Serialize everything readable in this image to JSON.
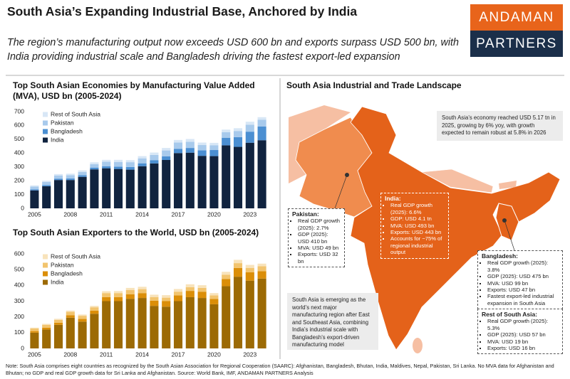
{
  "header": {
    "title": "South Asia’s Expanding Industrial Base, Anchored by India",
    "subtitle": "The region’s manufacturing output now exceeds USD 600 bn and exports surpass USD 500 bn, with India providing industrial scale and Bangladesh driving the fastest export-led expansion",
    "logo": [
      "ANDAMAN",
      "PARTNERS"
    ]
  },
  "chart_data": [
    {
      "type": "stacked_bar",
      "title": "Top South Asian Economies by Manufacturing Value Added (MVA), USD bn (2005-2024)",
      "categories": [
        "2005",
        null,
        null,
        "2008",
        null,
        null,
        "2011",
        null,
        null,
        "2014",
        null,
        null,
        "2017",
        null,
        null,
        "2020",
        null,
        null,
        "2023",
        null
      ],
      "series": [
        {
          "name": "India",
          "color": "#10233f",
          "values": [
            130,
            160,
            205,
            205,
            228,
            282,
            290,
            285,
            280,
            305,
            325,
            350,
            400,
            403,
            380,
            378,
            456,
            445,
            475,
            493
          ]
        },
        {
          "name": "Bangladesh",
          "color": "#4b8fd2",
          "values": [
            8,
            9,
            10,
            11,
            12,
            13,
            15,
            17,
            19,
            21,
            24,
            27,
            31,
            34,
            40,
            44,
            55,
            70,
            80,
            99
          ]
        },
        {
          "name": "Pakistan",
          "color": "#a8caec",
          "values": [
            20,
            22,
            23,
            24,
            23,
            25,
            32,
            34,
            35,
            36,
            38,
            42,
            45,
            45,
            38,
            35,
            40,
            45,
            50,
            49
          ]
        },
        {
          "name": "Rest of South Asia",
          "color": "#d8e7f6",
          "values": [
            8,
            9,
            10,
            11,
            12,
            13,
            14,
            15,
            15,
            16,
            17,
            18,
            19,
            20,
            18,
            17,
            19,
            20,
            22,
            19
          ]
        }
      ],
      "ylim": [
        0,
        700
      ],
      "yticks": [
        0,
        100,
        200,
        300,
        400,
        500,
        600,
        700
      ],
      "grid": false
    },
    {
      "type": "stacked_bar",
      "title": "Top South Asian Exporters to the World, USD bn (2005-2024)",
      "categories": [
        "2005",
        null,
        null,
        "2008",
        null,
        null,
        "2011",
        null,
        null,
        "2014",
        null,
        null,
        "2017",
        null,
        null,
        "2020",
        null,
        null,
        "2023",
        null
      ],
      "series": [
        {
          "name": "India",
          "color": "#9c6a04",
          "values": [
            100,
            120,
            150,
            195,
            170,
            220,
            300,
            300,
            315,
            320,
            270,
            265,
            300,
            325,
            320,
            280,
            395,
            455,
            430,
            443
          ]
        },
        {
          "name": "Bangladesh",
          "color": "#db8e08",
          "values": [
            10,
            12,
            13,
            16,
            17,
            19,
            25,
            26,
            29,
            31,
            33,
            35,
            37,
            40,
            40,
            34,
            45,
            55,
            53,
            47
          ]
        },
        {
          "name": "Pakistan",
          "color": "#f2c46e",
          "values": [
            17,
            18,
            18,
            21,
            20,
            22,
            26,
            25,
            26,
            25,
            23,
            22,
            23,
            24,
            24,
            22,
            28,
            31,
            28,
            32
          ]
        },
        {
          "name": "Rest of South Asia",
          "color": "#f8e3bb",
          "values": [
            5,
            6,
            7,
            8,
            8,
            9,
            12,
            13,
            14,
            15,
            15,
            16,
            17,
            18,
            17,
            15,
            18,
            21,
            19,
            16
          ]
        }
      ],
      "ylim": [
        0,
        600
      ],
      "yticks": [
        0,
        100,
        200,
        300,
        400,
        500,
        600
      ],
      "grid": false
    }
  ],
  "map": {
    "title": "South Asia Industrial and Trade Landscape",
    "summary": "South Asia’s economy reached USD 5.17 tn in 2025, growing by 6% yoy, with growth expected to remain robust at 5.8% in 2026",
    "callouts": [
      {
        "name": "Pakistan:",
        "items": [
          "Real GDP growth (2025): 2.7%",
          "GDP (2025): USD 410 bn",
          "MVA: USD 49 bn",
          "Exports: USD 32 bn"
        ]
      },
      {
        "name": "India:",
        "items": [
          "Real GDP growth (2025): 6.6%",
          "GDP: USD 4.1 tn",
          "MVA: USD 493 bn",
          "Exports: USD 443 bn",
          "Accounts for ~75% of regional industrial output"
        ]
      },
      {
        "name": "Bangladesh:",
        "items": [
          "Real GDP growth (2025): 3.8%",
          "GDP (2025): USD 475 bn",
          "MVA: USD 99 bn",
          "Exports: USD 47 bn",
          "Fastest export-led industrial expansion in South Asia"
        ]
      },
      {
        "name": "Rest of South Asia:",
        "items": [
          "Real GDP growth (2025): 5.3%",
          "GDP (2025): USD 57 bn",
          "MVA: USD 19 bn",
          "Exports: USD 16 bn"
        ]
      }
    ],
    "insight": "South Asia is emerging as the world’s next major manufacturing region after East and Southeast Asia, combining India’s industrial scale with Bangladesh’s export-driven manufacturing model"
  },
  "footnote": "Note: South Asia comprises eight countries as recognized by the South Asian Association for Regional Cooperation (SAARC): Afghanistan, Bangladesh, Bhutan, India, Maldives, Nepal, Pakistan, Sri Lanka. No MVA data for Afghanistan and Bhutan; no GDP and real GDP growth data for Sri Lanka and Afghanistan. Source: World Bank, IMF, ANDAMAN PARTNERS Analysis"
}
